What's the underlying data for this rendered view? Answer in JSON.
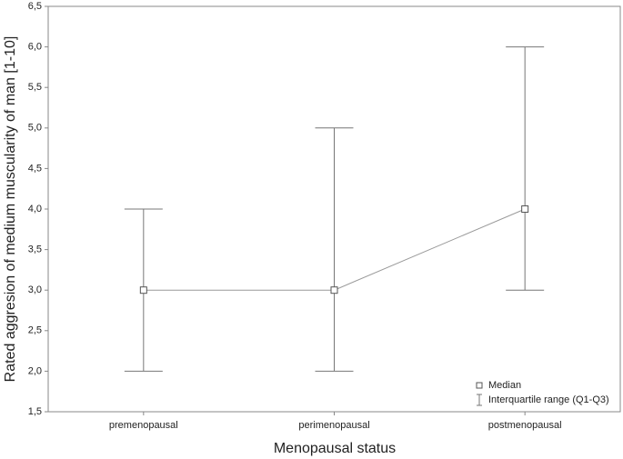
{
  "chart_data": {
    "type": "median-iqr",
    "x_label": "Menopausal status",
    "y_label": "Rated aggresion of medium muscularity of man [1-10]",
    "categories": [
      "premenopausal",
      "perimenopausal",
      "postmenopausal"
    ],
    "series": [
      {
        "name": "Median",
        "color": "#555555",
        "values": [
          3,
          3,
          4
        ]
      }
    ],
    "error_series": {
      "name": "Interquartile range (Q1-Q3)",
      "color": "#777777",
      "low": [
        2,
        2,
        3
      ],
      "high": [
        4,
        5,
        6
      ]
    },
    "ylim": [
      1.5,
      6.5
    ],
    "yticks": [
      {
        "value": 1.5,
        "label": "1,5"
      },
      {
        "value": 2,
        "label": "2,0"
      },
      {
        "value": 2.5,
        "label": "2,5"
      },
      {
        "value": 3,
        "label": "3,0"
      },
      {
        "value": 3.5,
        "label": "3,5"
      },
      {
        "value": 4,
        "label": "4,0"
      },
      {
        "value": 4.5,
        "label": "4,5"
      },
      {
        "value": 5,
        "label": "5,0"
      },
      {
        "value": 5.5,
        "label": "5,5"
      },
      {
        "value": 6,
        "label": "6,0"
      },
      {
        "value": 6.5,
        "label": "6,5"
      }
    ],
    "legend": "lower right"
  }
}
